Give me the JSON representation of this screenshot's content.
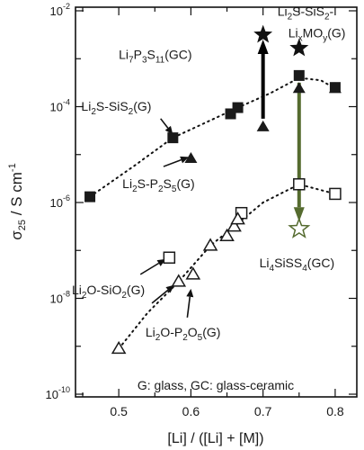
{
  "chart_data": {
    "type": "scatter",
    "xlabel": "[Li] / ([Li] + [M])",
    "xlim": [
      0.44,
      0.83
    ],
    "ylim_exponents": [
      -10,
      -2
    ],
    "y_scale": "log",
    "x_ticks": [
      "0.5",
      "0.6",
      "0.7",
      "0.8"
    ],
    "y_ticks": [
      {
        "base": "10",
        "exp": "-10",
        "value": -10
      },
      {
        "base": "10",
        "exp": "-8",
        "value": -8
      },
      {
        "base": "10",
        "exp": "-6",
        "value": -6
      },
      {
        "base": "10",
        "exp": "-4",
        "value": -4
      },
      {
        "base": "10",
        "exp": "-2",
        "value": -2
      }
    ],
    "ylabel": {
      "sigma": "σ",
      "sub": "25",
      "unit": " / S cm",
      "sup": "-1"
    },
    "series": [
      {
        "marker": "filled-square",
        "points": [
          {
            "x": 0.46,
            "log_y": -5.88
          },
          {
            "x": 0.575,
            "log_y": -4.65
          },
          {
            "x": 0.655,
            "log_y": -4.15
          },
          {
            "x": 0.665,
            "log_y": -4.02
          },
          {
            "x": 0.75,
            "log_y": -3.35
          },
          {
            "x": 0.8,
            "log_y": -3.6
          }
        ]
      },
      {
        "marker": "filled-triangle",
        "points": [
          {
            "x": 0.6,
            "log_y": -5.08
          },
          {
            "x": 0.7,
            "log_y": -4.42
          },
          {
            "x": 0.75,
            "log_y": -3.62
          },
          {
            "x": 0.8,
            "log_y": -3.62
          }
        ]
      },
      {
        "marker": "open-square",
        "points": [
          {
            "x": 0.57,
            "log_y": -7.15
          },
          {
            "x": 0.67,
            "log_y": -6.22
          },
          {
            "x": 0.75,
            "log_y": -5.62
          },
          {
            "x": 0.8,
            "log_y": -5.82
          }
        ]
      },
      {
        "marker": "open-triangle",
        "points": [
          {
            "x": 0.5,
            "log_y": -9.05
          },
          {
            "x": 0.583,
            "log_y": -7.65
          },
          {
            "x": 0.603,
            "log_y": -7.5
          },
          {
            "x": 0.627,
            "log_y": -6.9
          },
          {
            "x": 0.65,
            "log_y": -6.7
          },
          {
            "x": 0.66,
            "log_y": -6.5
          },
          {
            "x": 0.665,
            "log_y": -6.35
          }
        ]
      },
      {
        "marker": "filled-star",
        "points": [
          {
            "x": 0.7,
            "log_y": -2.5
          },
          {
            "x": 0.75,
            "log_y": -2.78
          }
        ]
      },
      {
        "marker": "open-star",
        "points": [
          {
            "x": 0.75,
            "log_y": -6.55
          }
        ]
      }
    ],
    "trend_lines": [
      [
        [
          0.46,
          -5.88
        ],
        [
          0.52,
          -5.25
        ],
        [
          0.575,
          -4.65
        ],
        [
          0.625,
          -4.3
        ],
        [
          0.665,
          -4.02
        ],
        [
          0.71,
          -3.72
        ],
        [
          0.75,
          -3.4
        ],
        [
          0.78,
          -3.45
        ],
        [
          0.8,
          -3.62
        ]
      ],
      [
        [
          0.5,
          -9.05
        ],
        [
          0.54,
          -8.3
        ],
        [
          0.583,
          -7.65
        ],
        [
          0.627,
          -6.9
        ],
        [
          0.66,
          -6.5
        ],
        [
          0.7,
          -6.0
        ],
        [
          0.75,
          -5.62
        ],
        [
          0.775,
          -5.72
        ],
        [
          0.8,
          -5.82
        ]
      ]
    ],
    "arrows": [
      {
        "from": [
          0.7,
          -4.25
        ],
        "to": [
          0.7,
          -2.6
        ],
        "color": "#000000"
      },
      {
        "from": [
          0.75,
          -3.5
        ],
        "to": [
          0.75,
          -6.4
        ],
        "color": "#556b2f"
      }
    ],
    "pointers": [
      {
        "from": [
          0.558,
          -4.25
        ],
        "to": [
          0.575,
          -4.58
        ]
      },
      {
        "from": [
          0.562,
          -5.25
        ],
        "to": [
          0.597,
          -5.05
        ]
      },
      {
        "from": [
          0.53,
          -7.5
        ],
        "to": [
          0.565,
          -7.18
        ]
      },
      {
        "from": [
          0.546,
          -8.1
        ],
        "to": [
          0.577,
          -7.72
        ]
      },
      {
        "from": [
          0.595,
          -8.4
        ],
        "to": [
          0.6,
          -7.8
        ]
      }
    ],
    "labels": [
      {
        "id": "l1",
        "x": 0.5,
        "log_y": -3.0,
        "parts": [
          [
            "Li",
            ""
          ],
          [
            "7",
            "sub"
          ],
          [
            "P",
            ""
          ],
          [
            "3",
            "sub"
          ],
          [
            "S",
            ""
          ],
          [
            "11",
            "sub"
          ],
          [
            "(GC)",
            ""
          ]
        ]
      },
      {
        "id": "l2",
        "x": 0.72,
        "log_y": -2.1,
        "parts": [
          [
            "Li",
            ""
          ],
          [
            "2",
            "sub"
          ],
          [
            "S-SiS",
            ""
          ],
          [
            "2",
            "sub"
          ],
          [
            "-",
            ""
          ]
        ]
      },
      {
        "id": "l3",
        "x": 0.735,
        "log_y": -2.55,
        "parts": [
          [
            "Li",
            ""
          ],
          [
            "x",
            "sub"
          ],
          [
            "MO",
            ""
          ],
          [
            "y",
            "sub"
          ],
          [
            "(G)",
            ""
          ]
        ]
      },
      {
        "id": "l4",
        "x": 0.448,
        "log_y": -4.08,
        "parts": [
          [
            "Li",
            ""
          ],
          [
            "2",
            "sub"
          ],
          [
            "S-SiS",
            ""
          ],
          [
            "2",
            "sub"
          ],
          [
            "(G)",
            ""
          ]
        ]
      },
      {
        "id": "l5",
        "x": 0.505,
        "log_y": -5.7,
        "parts": [
          [
            "Li",
            ""
          ],
          [
            "2",
            "sub"
          ],
          [
            "S-P",
            ""
          ],
          [
            "2",
            "sub"
          ],
          [
            "S",
            ""
          ],
          [
            "5",
            "sub"
          ],
          [
            "(G)",
            ""
          ]
        ]
      },
      {
        "id": "l6",
        "x": 0.695,
        "log_y": -7.35,
        "parts": [
          [
            "Li",
            ""
          ],
          [
            "4",
            "sub"
          ],
          [
            "SiSS",
            ""
          ],
          [
            "4",
            "sub"
          ],
          [
            "(GC)",
            ""
          ]
        ]
      },
      {
        "id": "l7",
        "x": 0.435,
        "log_y": -7.92,
        "parts": [
          [
            "Li",
            ""
          ],
          [
            "2",
            "sub"
          ],
          [
            "O-SiO",
            ""
          ],
          [
            "2",
            "sub"
          ],
          [
            "(G)",
            ""
          ]
        ]
      },
      {
        "id": "l8",
        "x": 0.537,
        "log_y": -8.8,
        "parts": [
          [
            "Li",
            ""
          ],
          [
            "2",
            "sub"
          ],
          [
            "O-P",
            ""
          ],
          [
            "2",
            "sub"
          ],
          [
            "O",
            ""
          ],
          [
            "5",
            "sub"
          ],
          [
            "(G)",
            ""
          ]
        ]
      }
    ],
    "note": "G: glass, GC: glass-ceramic"
  }
}
